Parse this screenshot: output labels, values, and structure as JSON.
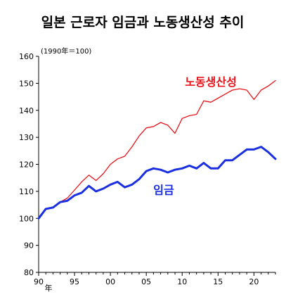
{
  "chart_data": {
    "type": "line",
    "title": "일본 근로자 임금과 노동생산성 추이",
    "unit_note": "(1990年＝100)",
    "xlabel": "",
    "ylabel": "",
    "ylim": [
      80,
      160
    ],
    "yticks": [
      80,
      90,
      100,
      110,
      120,
      130,
      140,
      150,
      160
    ],
    "xlim": [
      1990,
      2023
    ],
    "xticks": [
      {
        "x": 1990,
        "label": "90"
      },
      {
        "x": 1995,
        "label": "95"
      },
      {
        "x": 2000,
        "label": "00"
      },
      {
        "x": 2005,
        "label": "05"
      },
      {
        "x": 2010,
        "label": "10"
      },
      {
        "x": 2015,
        "label": "15"
      },
      {
        "x": 2020,
        "label": "20"
      }
    ],
    "xunit": "年",
    "grid": false,
    "x": [
      1990,
      1991,
      1992,
      1993,
      1994,
      1995,
      1996,
      1997,
      1998,
      1999,
      2000,
      2001,
      2002,
      2003,
      2004,
      2005,
      2006,
      2007,
      2008,
      2009,
      2010,
      2011,
      2012,
      2013,
      2014,
      2015,
      2016,
      2017,
      2018,
      2019,
      2020,
      2021,
      2022,
      2023
    ],
    "series": [
      {
        "name": "노동생산성",
        "color": "#e8141c",
        "values": [
          100,
          103.5,
          104,
          106,
          107.5,
          110.5,
          113.5,
          116,
          114,
          116.5,
          120,
          122,
          123,
          126.5,
          130.5,
          133.5,
          134,
          135.5,
          134.5,
          131.5,
          137,
          138,
          138.5,
          143.5,
          143,
          144.5,
          146,
          147.5,
          148,
          147.5,
          144,
          147.5,
          149,
          151
        ]
      },
      {
        "name": "임금",
        "color": "#1a2fe0",
        "values": [
          100,
          103.5,
          104,
          106,
          106.5,
          108.5,
          109.5,
          112,
          110,
          111,
          112.5,
          113.5,
          111.5,
          112.5,
          114.5,
          117.5,
          118.5,
          118,
          117,
          118,
          118.5,
          119.5,
          118.5,
          120.5,
          118.5,
          118.5,
          121.5,
          121.5,
          123.5,
          125.5,
          125.5,
          126.5,
          124.5,
          122
        ]
      }
    ]
  }
}
